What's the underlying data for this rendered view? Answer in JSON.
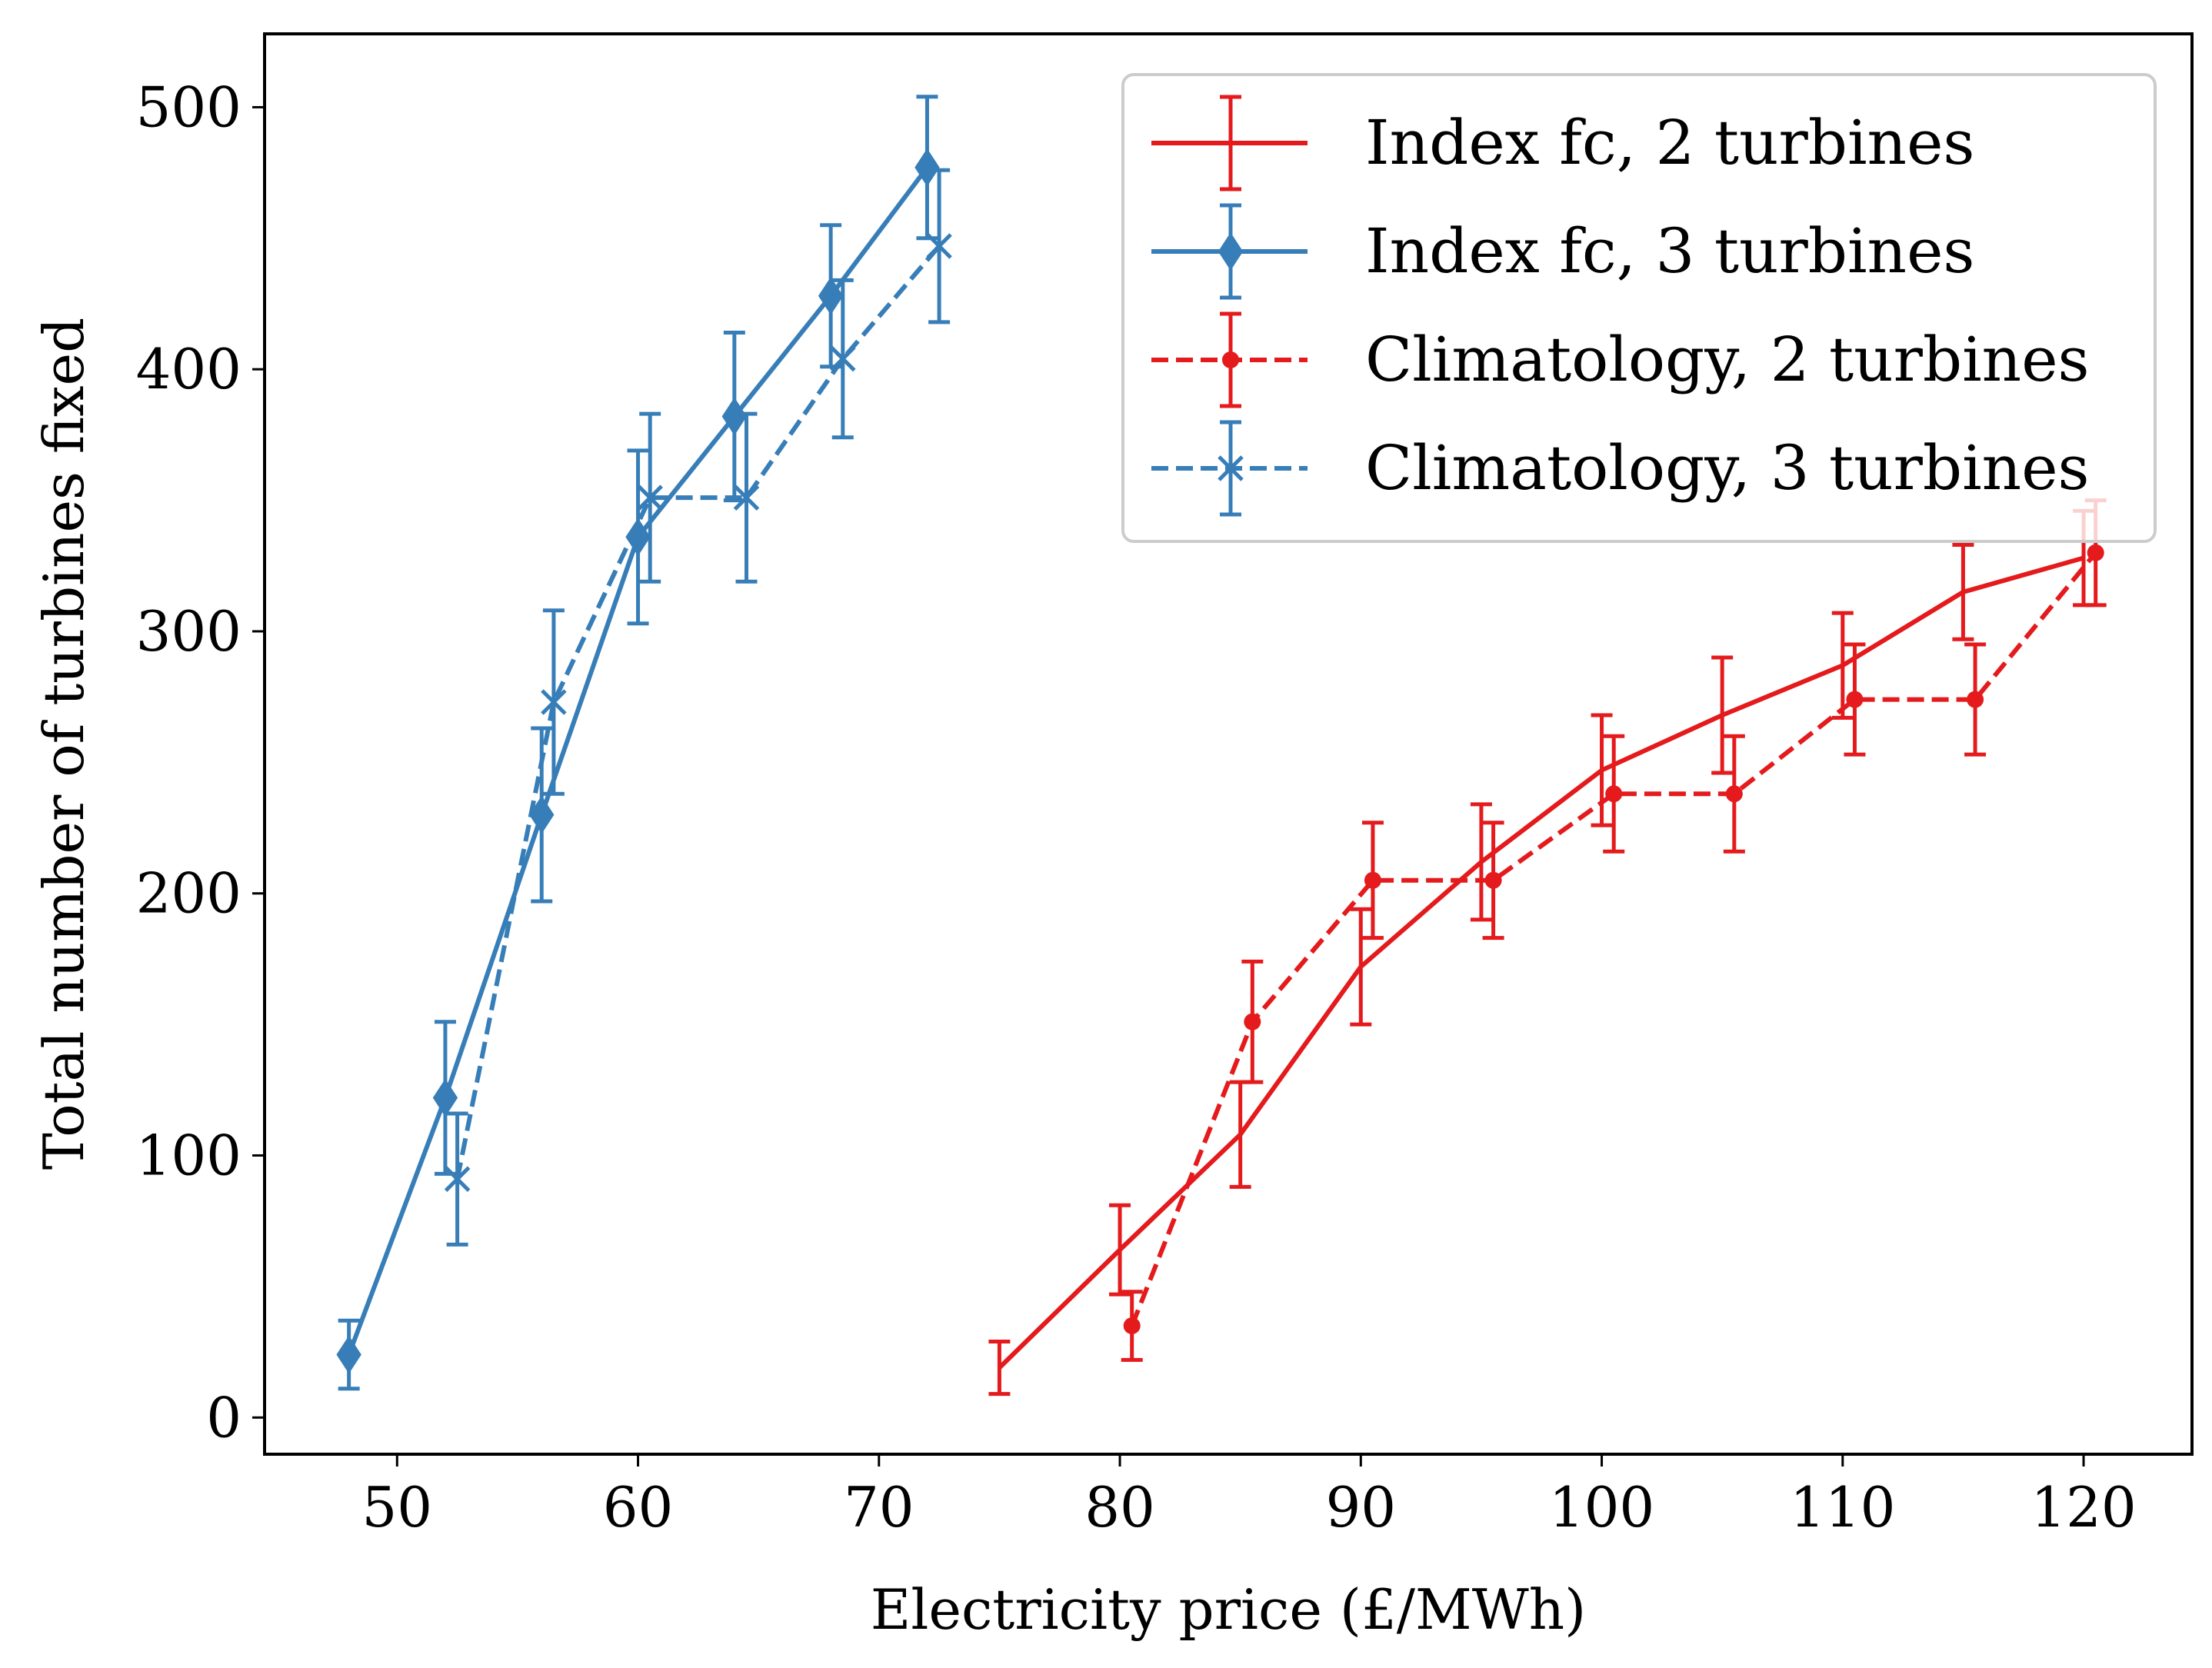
{
  "chart_data": {
    "type": "line",
    "title": "",
    "xlabel": "Electricity price (£/MWh)",
    "ylabel": "Total number of turbines fixed",
    "xlim": [
      44.5,
      124.5
    ],
    "ylim": [
      -14,
      528
    ],
    "xticks": [
      50,
      60,
      70,
      80,
      90,
      100,
      110,
      120
    ],
    "yticks": [
      0,
      100,
      200,
      300,
      400,
      500
    ],
    "grid": false,
    "legend_position": "top-right",
    "colors": {
      "red": "#e41a1c",
      "blue": "#377eb8"
    },
    "series": [
      {
        "name": "Index fc, 2 turbines",
        "color": "#e41a1c",
        "linestyle": "solid",
        "marker": "none",
        "x": [
          75,
          80,
          85,
          90,
          95,
          100,
          105,
          110,
          115,
          120
        ],
        "y": [
          19,
          64,
          108,
          172,
          212,
          247,
          268,
          287,
          315,
          328
        ],
        "err": [
          10,
          17,
          20,
          22,
          22,
          21,
          22,
          20,
          18,
          18
        ]
      },
      {
        "name": "Index fc, 3 turbines",
        "color": "#377eb8",
        "linestyle": "solid",
        "marker": "diamond",
        "x": [
          48,
          52,
          56,
          60,
          64,
          68,
          72
        ],
        "y": [
          24,
          122,
          230,
          336,
          382,
          428,
          477
        ],
        "err": [
          13,
          29,
          33,
          33,
          32,
          27,
          27
        ]
      },
      {
        "name": "Climatology, 2 turbines",
        "color": "#e41a1c",
        "linestyle": "dashed",
        "marker": "dot",
        "x": [
          80.5,
          85.5,
          90.5,
          95.5,
          100.5,
          105.5,
          110.5,
          115.5,
          120.5
        ],
        "y": [
          35,
          151,
          205,
          205,
          238,
          238,
          274,
          274,
          330
        ],
        "err": [
          13,
          23,
          22,
          22,
          22,
          22,
          21,
          21,
          20
        ]
      },
      {
        "name": "Climatology, 3 turbines",
        "color": "#377eb8",
        "linestyle": "dashed",
        "marker": "x",
        "x": [
          52.5,
          56.5,
          60.5,
          64.5,
          68.5,
          72.5
        ],
        "y": [
          91,
          273,
          351,
          351,
          404,
          447
        ],
        "err": [
          25,
          35,
          32,
          32,
          30,
          29
        ]
      }
    ]
  }
}
